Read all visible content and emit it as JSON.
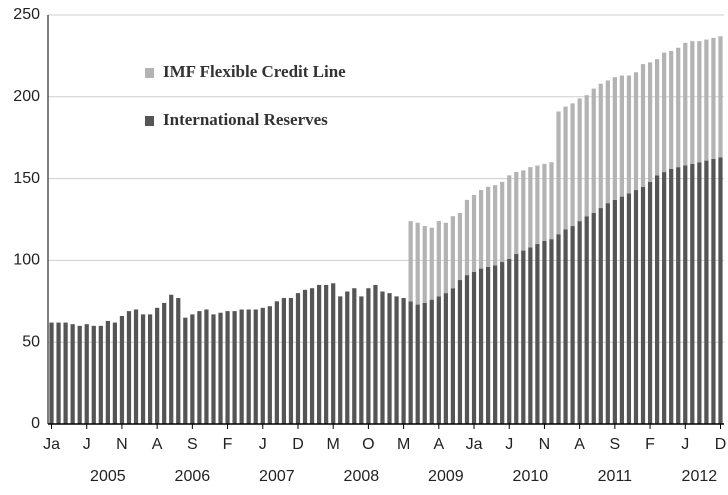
{
  "chart_data": {
    "type": "stacked_bar",
    "categories": [
      "Ja",
      null,
      null,
      null,
      null,
      "J",
      null,
      null,
      null,
      null,
      "N",
      null,
      null,
      null,
      null,
      "A",
      null,
      null,
      null,
      null,
      "S",
      null,
      null,
      null,
      null,
      "F",
      null,
      null,
      null,
      null,
      "J",
      null,
      null,
      null,
      null,
      "D",
      null,
      null,
      null,
      null,
      "M",
      null,
      null,
      null,
      null,
      "O",
      null,
      null,
      null,
      null,
      "M",
      null,
      null,
      null,
      null,
      "A",
      null,
      null,
      null,
      null,
      "Ja",
      null,
      null,
      null,
      null,
      "J",
      null,
      null,
      null,
      null,
      "N",
      null,
      null,
      null,
      null,
      "A",
      null,
      null,
      null,
      null,
      "S",
      null,
      null,
      null,
      null,
      "F",
      null,
      null,
      null,
      null,
      "J",
      null,
      null,
      null,
      null,
      "D"
    ],
    "years": [
      "2005",
      "2006",
      "2007",
      "2008",
      "2009",
      "2010",
      "2011",
      "2012"
    ],
    "series": [
      {
        "name": "International Reserves",
        "color": "#555555",
        "values": [
          62,
          62,
          62,
          61,
          60,
          61,
          60,
          60,
          63,
          62,
          66,
          69,
          70,
          67,
          67,
          71,
          74,
          79,
          77,
          65,
          67,
          69,
          70,
          67,
          68,
          69,
          69,
          70,
          70,
          70,
          71,
          72,
          75,
          77,
          77,
          80,
          82,
          83,
          85,
          85,
          86,
          78,
          81,
          83,
          78,
          83,
          85,
          81,
          80,
          78,
          77,
          75,
          73,
          74,
          76,
          78,
          80,
          83,
          88,
          91,
          93,
          95,
          96,
          97,
          99,
          101,
          104,
          106,
          108,
          110,
          112,
          113,
          116,
          119,
          121,
          124,
          127,
          129,
          132,
          135,
          137,
          139,
          141,
          143,
          145,
          148,
          152,
          154,
          156,
          157,
          158,
          159,
          160,
          161,
          162,
          163
        ]
      },
      {
        "name": "IMF Flexible Credit Line",
        "color": "#b3b3b3",
        "values": [
          null,
          null,
          null,
          null,
          null,
          null,
          null,
          null,
          null,
          null,
          null,
          null,
          null,
          null,
          null,
          null,
          null,
          null,
          null,
          null,
          null,
          null,
          null,
          null,
          null,
          null,
          null,
          null,
          null,
          null,
          null,
          null,
          null,
          null,
          null,
          null,
          null,
          null,
          null,
          null,
          null,
          null,
          null,
          null,
          null,
          null,
          null,
          null,
          null,
          null,
          null,
          49,
          50,
          47,
          44,
          46,
          43,
          44,
          41,
          46,
          47,
          48,
          49,
          49,
          49,
          51,
          50,
          49,
          49,
          48,
          47,
          47,
          75,
          75,
          75,
          75,
          74,
          76,
          76,
          75,
          75,
          74,
          72,
          72,
          75,
          73,
          71,
          73,
          72,
          73,
          75,
          75,
          74,
          74,
          74,
          74
        ]
      }
    ],
    "ylim": [
      0,
      250
    ],
    "yticks": [
      0,
      50,
      100,
      150,
      200,
      250
    ],
    "grid": true
  }
}
